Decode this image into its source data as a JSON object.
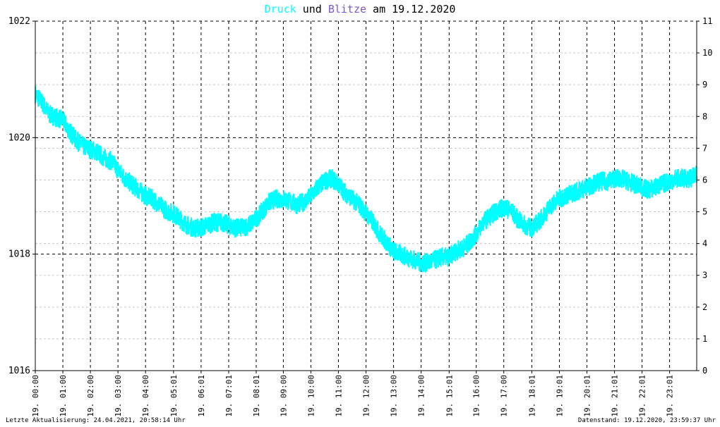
{
  "title": {
    "word1": "Druck",
    "word2": " und ",
    "word3": "Blitze",
    "word4": " am 19.12.2020",
    "color1": "#00ffff",
    "color3": "#7a57d1"
  },
  "footer": {
    "left": "Letzte Aktualisierung: 24.04.2021, 20:58:14 Uhr",
    "right": "Datenstand: 19.12.2020, 23:59:37 Uhr"
  },
  "chart_data": {
    "type": "line",
    "x_range_hours": [
      0,
      24
    ],
    "y_left": {
      "min": 1016,
      "max": 1022,
      "ticks": [
        "1016",
        "1018",
        "1020",
        "1022"
      ]
    },
    "y_right": {
      "min": 0,
      "max": 11,
      "ticks": [
        "0",
        "1",
        "2",
        "3",
        "4",
        "5",
        "6",
        "7",
        "8",
        "9",
        "10",
        "11"
      ]
    },
    "x_tick_labels": [
      "19. 00:00",
      "19. 01:00",
      "19. 02:00",
      "19. 03:00",
      "19. 04:00",
      "19. 05:01",
      "19. 06:01",
      "19. 07:01",
      "19. 08:01",
      "19. 09:00",
      "19. 10:00",
      "19. 11:00",
      "19. 12:00",
      "19. 13:00",
      "19. 14:00",
      "19. 15:01",
      "19. 16:00",
      "19. 17:00",
      "19. 18:01",
      "19. 19:01",
      "19. 20:01",
      "19. 21:01",
      "19. 22:01",
      "19. 23:01"
    ],
    "x_tick_hours": [
      0,
      1,
      2,
      3,
      4,
      5.017,
      6.017,
      7.017,
      8.017,
      9,
      10,
      11,
      12,
      13,
      14,
      15.017,
      16,
      17,
      18.017,
      19.017,
      20.017,
      21.017,
      22.017,
      23.017
    ],
    "grid": true,
    "series": [
      {
        "name": "Druck",
        "color": "#00ffff",
        "axis": "left",
        "x": [
          0,
          0.25,
          0.5,
          0.75,
          1,
          1.25,
          1.5,
          1.75,
          2,
          2.25,
          2.5,
          2.75,
          3,
          3.25,
          3.5,
          3.75,
          4,
          4.25,
          4.5,
          4.75,
          5,
          5.25,
          5.5,
          5.75,
          6,
          6.25,
          6.5,
          6.75,
          7,
          7.25,
          7.5,
          7.75,
          8,
          8.25,
          8.5,
          8.75,
          9,
          9.25,
          9.5,
          9.75,
          10,
          10.25,
          10.5,
          10.75,
          11,
          11.25,
          11.5,
          11.75,
          12,
          12.25,
          12.5,
          12.75,
          13,
          13.25,
          13.5,
          13.75,
          14,
          14.25,
          14.5,
          14.75,
          15,
          15.25,
          15.5,
          15.75,
          16,
          16.25,
          16.5,
          16.75,
          17,
          17.25,
          17.5,
          17.75,
          18,
          18.25,
          18.5,
          18.75,
          19,
          19.25,
          19.5,
          19.75,
          20,
          20.25,
          20.5,
          20.75,
          21,
          21.25,
          21.5,
          21.75,
          22,
          22.25,
          22.5,
          22.75,
          23,
          23.25,
          23.5,
          23.75,
          24
        ],
        "y": [
          1020.75,
          1020.6,
          1020.4,
          1020.35,
          1020.3,
          1020.1,
          1019.95,
          1019.85,
          1019.8,
          1019.75,
          1019.65,
          1019.6,
          1019.45,
          1019.3,
          1019.2,
          1019.1,
          1019.0,
          1018.95,
          1018.85,
          1018.75,
          1018.7,
          1018.6,
          1018.5,
          1018.45,
          1018.45,
          1018.5,
          1018.55,
          1018.55,
          1018.5,
          1018.45,
          1018.45,
          1018.5,
          1018.6,
          1018.75,
          1018.9,
          1018.95,
          1018.95,
          1018.9,
          1018.85,
          1018.9,
          1019.0,
          1019.15,
          1019.25,
          1019.3,
          1019.2,
          1019.05,
          1018.95,
          1018.85,
          1018.7,
          1018.55,
          1018.35,
          1018.2,
          1018.05,
          1018.0,
          1017.95,
          1017.9,
          1017.85,
          1017.85,
          1017.9,
          1017.95,
          1017.95,
          1018.05,
          1018.1,
          1018.2,
          1018.35,
          1018.55,
          1018.65,
          1018.75,
          1018.8,
          1018.75,
          1018.6,
          1018.5,
          1018.45,
          1018.55,
          1018.7,
          1018.85,
          1018.95,
          1019.0,
          1019.05,
          1019.1,
          1019.15,
          1019.2,
          1019.25,
          1019.25,
          1019.3,
          1019.3,
          1019.25,
          1019.2,
          1019.15,
          1019.1,
          1019.15,
          1019.2,
          1019.25,
          1019.3,
          1019.3,
          1019.3,
          1019.35
        ]
      }
    ]
  }
}
